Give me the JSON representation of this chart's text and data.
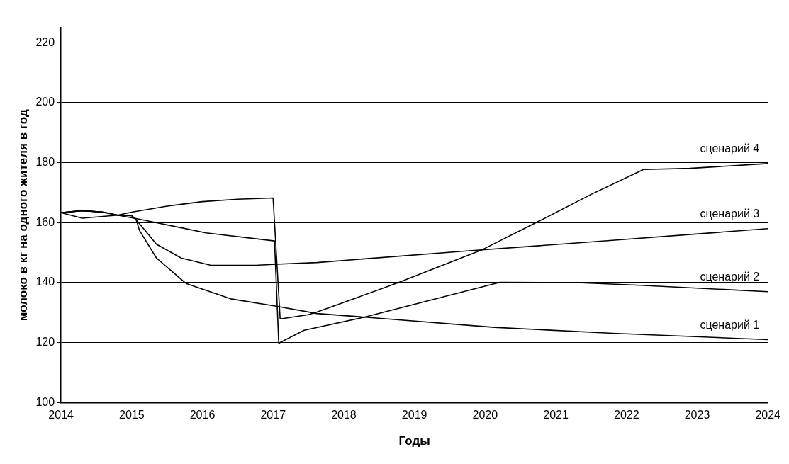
{
  "chart_data": {
    "type": "line",
    "xlabel": "Годы",
    "ylabel": "молоко в кг на одного жителя в год",
    "xlim": [
      2014,
      2024
    ],
    "xticks": [
      2014,
      2015,
      2016,
      2017,
      2018,
      2019,
      2020,
      2021,
      2022,
      2023,
      2024
    ],
    "ylim": [
      100,
      225
    ],
    "yticks": [
      100,
      120,
      140,
      160,
      180,
      200,
      220
    ],
    "grid": "y",
    "legend": false,
    "marker": "none",
    "line_style": "solid",
    "series": [
      {
        "name": "сценарий 1",
        "color": "#000000",
        "x": [
          2014,
          2014.3,
          2014.6,
          2014.8,
          2015,
          2015.06,
          2015.11,
          2015.35,
          2015.77,
          2016.4,
          2017.06,
          2017.62,
          2018.46,
          2020.13,
          2021.8,
          2024
        ],
        "values": [
          163.3,
          164,
          163.5,
          162.5,
          162.3,
          161.2,
          157.4,
          148.2,
          139.7,
          134.6,
          132.1,
          129.7,
          128.2,
          125.1,
          123.1,
          121
        ]
      },
      {
        "name": "сценарий 2",
        "color": "#000000",
        "x": [
          2014,
          2014.3,
          2014.6,
          2014.8,
          2015.1,
          2016.05,
          2017.02,
          2017.08,
          2017.44,
          2018.33,
          2020.21,
          2021.3,
          2022.2,
          2024
        ],
        "values": [
          163.3,
          164,
          163.5,
          162.5,
          161.2,
          156.6,
          153.9,
          119.8,
          124.1,
          128.7,
          140.1,
          140,
          139.1,
          137
        ]
      },
      {
        "name": "сценарий 3",
        "color": "#000000",
        "x": [
          2014,
          2014.3,
          2014.6,
          2014.8,
          2015,
          2015.08,
          2015.35,
          2015.7,
          2016.12,
          2016.75,
          2017.1,
          2017.62,
          2019.71,
          2021.8,
          2024
        ],
        "values": [
          163.3,
          164,
          163.5,
          162.5,
          162.3,
          160.5,
          152.8,
          148.2,
          145.8,
          145.8,
          146.2,
          146.7,
          150.5,
          154.1,
          158
        ]
      },
      {
        "name": "сценарий 4",
        "color": "#000000",
        "x": [
          2014,
          2014.3,
          2014.8,
          2015,
          2015.5,
          2016,
          2016.5,
          2017,
          2017.1,
          2017.5,
          2017.62,
          2018.75,
          2019.96,
          2020.72,
          2021.49,
          2022.24,
          2022.9,
          2024
        ],
        "values": [
          163.3,
          161.5,
          162.5,
          163.5,
          165.5,
          167,
          167.8,
          168.2,
          127.9,
          129.3,
          130.2,
          139.8,
          151,
          160,
          169.3,
          177.7,
          178.1,
          179.7
        ]
      }
    ]
  }
}
